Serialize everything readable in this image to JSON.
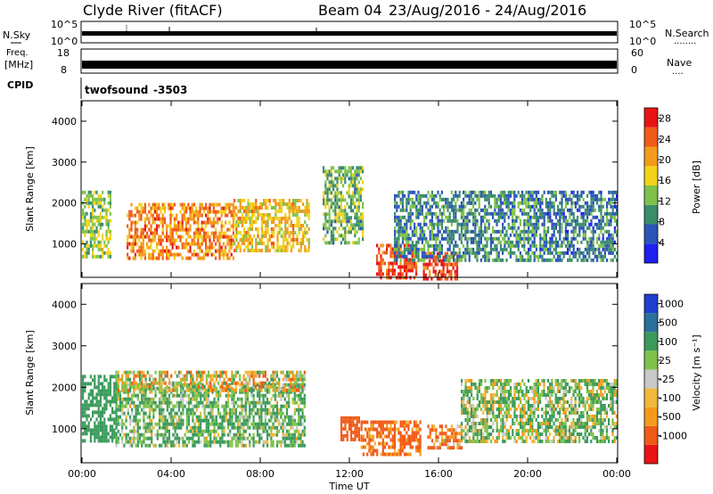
{
  "header": {
    "station": "Clyde River (fitACF)",
    "beam": "Beam 04",
    "dates": "23/Aug/2016 - 24/Aug/2016"
  },
  "noise_panel": {
    "left_label": "N.Sky",
    "right_label": "N.Search",
    "right_dots": "........",
    "top_tick_left": "10^5",
    "bottom_tick_left": "10^0",
    "top_tick_right": "10^5",
    "bottom_tick_right": "10^0"
  },
  "freq_panel": {
    "left_label_line1": "Freq.",
    "left_label_line2": "[MHz]",
    "right_label": "Nave",
    "right_dots": "....",
    "left_ticks": [
      "18",
      "8"
    ],
    "right_ticks": [
      "60",
      "0"
    ]
  },
  "cpid_panel": {
    "label": "CPID",
    "program": "twofsound",
    "cpid_value": "-3503"
  },
  "colors": {
    "power_scale": [
      "#1f1ff0",
      "#2a55b8",
      "#3a8c6a",
      "#7fc24a",
      "#f2d21a",
      "#f49a1a",
      "#f05a18",
      "#e81414"
    ],
    "velocity_scale": [
      "#e81414",
      "#f05a18",
      "#f49a1a",
      "#f2b83a",
      "#c8c8c8",
      "#7fc24a",
      "#3a9a5a",
      "#2a6f9a",
      "#1f3fd0"
    ]
  },
  "chart_data": [
    {
      "type": "heatmap",
      "title": "Power",
      "ylabel": "Slant Range [km]",
      "xlabel": "",
      "ylim": [
        180,
        4500
      ],
      "yticks": [
        "1000",
        "2000",
        "3000",
        "4000"
      ],
      "x_ticks": [
        "00:00",
        "04:00",
        "08:00",
        "12:00",
        "16:00",
        "20:00",
        "00:00"
      ],
      "colorbar": {
        "label": "Power [dB]",
        "ticks": [
          "4",
          "8",
          "12",
          "16",
          "20",
          "24",
          "28"
        ],
        "range": [
          0,
          30
        ]
      },
      "regions": [
        {
          "time_range": [
            0.0,
            1.3
          ],
          "range_km": [
            700,
            2300
          ],
          "value_db": 14
        },
        {
          "time_range": [
            2.0,
            6.8
          ],
          "range_km": [
            650,
            2000
          ],
          "value_db": 22
        },
        {
          "time_range": [
            6.8,
            10.2
          ],
          "range_km": [
            800,
            2100
          ],
          "value_db": 18
        },
        {
          "time_range": [
            10.8,
            12.6
          ],
          "range_km": [
            1000,
            2900
          ],
          "value_db": 12
        },
        {
          "time_range": [
            13.2,
            15.0
          ],
          "range_km": [
            180,
            1000
          ],
          "value_db": 26
        },
        {
          "time_range": [
            15.3,
            16.8
          ],
          "range_km": [
            180,
            800
          ],
          "value_db": 26
        },
        {
          "time_range": [
            14.0,
            20.0
          ],
          "range_km": [
            600,
            2300
          ],
          "value_db": 9
        },
        {
          "time_range": [
            20.0,
            24.0
          ],
          "range_km": [
            600,
            2300
          ],
          "value_db": 8
        }
      ]
    },
    {
      "type": "heatmap",
      "title": "Velocity",
      "ylabel": "Slant Range [km]",
      "xlabel": "Time UT",
      "ylim": [
        180,
        4500
      ],
      "yticks": [
        "1000",
        "2000",
        "3000",
        "4000"
      ],
      "x_ticks": [
        "00:00",
        "04:00",
        "08:00",
        "12:00",
        "16:00",
        "20:00",
        "00:00"
      ],
      "colorbar": {
        "label": "Velocity [m s⁻¹]",
        "ticks": [
          "1000",
          "500",
          "100",
          "25",
          "-25",
          "-100",
          "-500",
          "-1000"
        ],
        "range": [
          -1000,
          1000
        ]
      },
      "regions": [
        {
          "time_range": [
            0.0,
            1.5
          ],
          "range_km": [
            700,
            2300
          ],
          "value_ms": 300
        },
        {
          "time_range": [
            1.5,
            10.0
          ],
          "range_km": [
            600,
            2100
          ],
          "value_ms": 120
        },
        {
          "time_range": [
            1.5,
            10.0
          ],
          "range_km": [
            1900,
            2400
          ],
          "value_ms": 0
        },
        {
          "time_range": [
            11.6,
            12.4
          ],
          "range_km": [
            700,
            1300
          ],
          "value_ms": -300
        },
        {
          "time_range": [
            12.5,
            15.2
          ],
          "range_km": [
            400,
            1200
          ],
          "value_ms": -150
        },
        {
          "time_range": [
            15.5,
            17.0
          ],
          "range_km": [
            500,
            1100
          ],
          "value_ms": -120
        },
        {
          "time_range": [
            17.0,
            24.0
          ],
          "range_km": [
            700,
            2200
          ],
          "value_ms": 80
        }
      ]
    }
  ]
}
